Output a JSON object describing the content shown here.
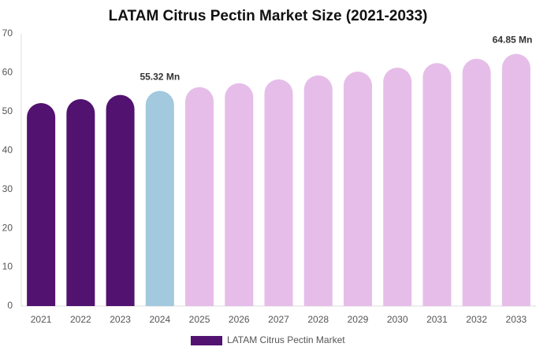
{
  "chart_data": {
    "type": "bar",
    "title": "LATAM Citrus Pectin Market Size (2021-2033)",
    "categories": [
      "2021",
      "2022",
      "2023",
      "2024",
      "2025",
      "2026",
      "2027",
      "2028",
      "2029",
      "2030",
      "2031",
      "2032",
      "2033"
    ],
    "series": [
      {
        "name": "LATAM Citrus Pectin Market",
        "color": "#521270",
        "colors": [
          "#521270",
          "#521270",
          "#521270",
          "#a2c9de",
          "#e6bde9",
          "#e6bde9",
          "#e6bde9",
          "#e6bde9",
          "#e6bde9",
          "#e6bde9",
          "#e6bde9",
          "#e6bde9",
          "#e6bde9"
        ],
        "values": [
          52.2,
          53.2,
          54.3,
          55.32,
          56.3,
          57.3,
          58.3,
          59.3,
          60.3,
          61.3,
          62.5,
          63.6,
          64.85
        ],
        "value_labels": [
          null,
          null,
          null,
          "55.32 Mn",
          null,
          null,
          null,
          null,
          null,
          null,
          null,
          null,
          "64.85 Mn"
        ]
      }
    ],
    "ylim": [
      0,
      70
    ],
    "yticks": [
      0,
      10,
      20,
      30,
      40,
      50,
      60,
      70
    ],
    "grid": false,
    "legend": "bottom"
  }
}
